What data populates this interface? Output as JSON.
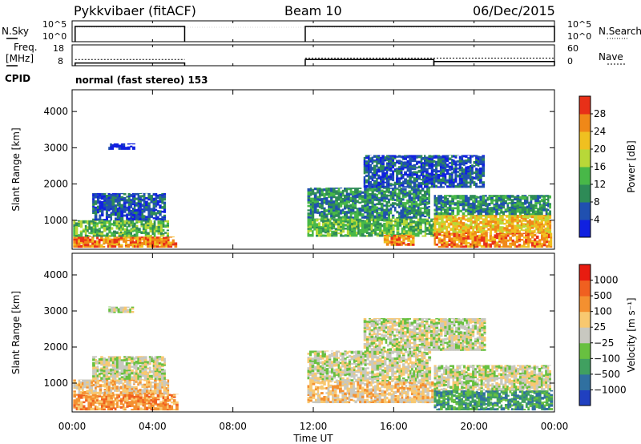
{
  "header": {
    "title": "Pykkvibaer (fitACF)",
    "beam": "Beam 10",
    "date": "06/Dec/2015"
  },
  "strip_labels": {
    "nsky": "N.Sky",
    "nsearch": "N.Search",
    "freq_line1": "Freq.",
    "freq_line2": "[MHz]",
    "nave": "Nave",
    "cpid": "CPID",
    "cpid_value": "normal (fast stereo) 153",
    "nsky_ticks": [
      "10^5",
      "10^0"
    ],
    "nsearch_ticks": [
      "10^5",
      "10^0"
    ],
    "freq_ticks": [
      "18",
      "8"
    ],
    "nave_ticks": [
      "60",
      "0"
    ]
  },
  "chart_data": {
    "type": "heatmap",
    "x_axis": {
      "label": "Time UT",
      "ticks": [
        "00:00",
        "04:00",
        "08:00",
        "12:00",
        "16:00",
        "20:00",
        "00:00"
      ],
      "range_hours": [
        0,
        24
      ]
    },
    "data_gap_hours": [
      5.6,
      11.6
    ],
    "nsky_on_segments_hours": [
      [
        0.15,
        5.6
      ],
      [
        11.6,
        24
      ]
    ],
    "freq_mhz_segments": [
      {
        "from": 0.15,
        "to": 5.6,
        "value": 9.3
      },
      {
        "from": 11.6,
        "to": 18.0,
        "value": 11.0
      },
      {
        "from": 18.0,
        "to": 24.0,
        "value": 10.0
      }
    ],
    "nave_segments": [
      {
        "from": 0.15,
        "to": 5.6,
        "value": 18
      },
      {
        "from": 11.6,
        "to": 24.0,
        "value": 22
      }
    ],
    "panels": [
      {
        "name": "power",
        "ylabel": "Slant Range [km]",
        "yticks": [
          "1000",
          "2000",
          "3000",
          "4000"
        ],
        "ylim_km": [
          200,
          4600
        ],
        "colorbar_label": "Power [dB]",
        "colorbar_ticks": [
          "4",
          "8",
          "12",
          "16",
          "20",
          "24",
          "28"
        ],
        "colorbar_colors": [
          "#1020e0",
          "#2050b0",
          "#2e8b57",
          "#48b848",
          "#b8d838",
          "#f0c020",
          "#f08818",
          "#e83018"
        ],
        "echo_regions": [
          {
            "t0": 0.05,
            "t1": 5.2,
            "r0": 250,
            "r1": 550,
            "level": 6
          },
          {
            "t0": 0.05,
            "t1": 4.8,
            "r0": 550,
            "r1": 1000,
            "level": 3
          },
          {
            "t0": 1.0,
            "t1": 4.6,
            "r0": 1000,
            "r1": 1750,
            "level": 1
          },
          {
            "t0": 1.8,
            "t1": 3.0,
            "r0": 2950,
            "r1": 3120,
            "level": 0
          },
          {
            "t0": 11.7,
            "t1": 17.8,
            "r0": 1050,
            "r1": 1900,
            "level": 2
          },
          {
            "t0": 11.7,
            "t1": 18.0,
            "r0": 550,
            "r1": 1050,
            "level": 3
          },
          {
            "t0": 15.5,
            "t1": 17.0,
            "r0": 300,
            "r1": 600,
            "level": 6
          },
          {
            "t0": 18.0,
            "t1": 23.8,
            "r0": 650,
            "r1": 1150,
            "level": 5
          },
          {
            "t0": 18.0,
            "t1": 23.8,
            "r0": 250,
            "r1": 650,
            "level": 6
          },
          {
            "t0": 18.0,
            "t1": 23.8,
            "r0": 1150,
            "r1": 1700,
            "level": 2
          },
          {
            "t0": 14.5,
            "t1": 20.5,
            "r0": 1900,
            "r1": 2800,
            "level": 1
          }
        ]
      },
      {
        "name": "velocity",
        "ylabel": "Slant Range [km]",
        "yticks": [
          "1000",
          "2000",
          "3000",
          "4000"
        ],
        "ylim_km": [
          200,
          4600
        ],
        "colorbar_label": "Velocity [m s⁻¹]",
        "colorbar_ticks": [
          "1000",
          "500",
          "100",
          "25",
          "−25",
          "−100",
          "−500",
          "−1000"
        ],
        "colorbar_colors": [
          "#2040c0",
          "#3070a0",
          "#40a060",
          "#68c040",
          "#c8c8c0",
          "#f8c870",
          "#f49030",
          "#f06020",
          "#e81c10"
        ],
        "echo_regions": [
          {
            "t0": 0.05,
            "t1": 5.2,
            "r0": 250,
            "r1": 700,
            "level": 6
          },
          {
            "t0": 0.05,
            "t1": 4.8,
            "r0": 700,
            "r1": 1100,
            "level": 5
          },
          {
            "t0": 1.0,
            "t1": 4.6,
            "r0": 1100,
            "r1": 1750,
            "level": 4
          },
          {
            "t0": 1.8,
            "t1": 3.0,
            "r0": 2950,
            "r1": 3120,
            "level": 4
          },
          {
            "t0": 11.7,
            "t1": 17.8,
            "r0": 1050,
            "r1": 1900,
            "level": 4
          },
          {
            "t0": 11.7,
            "t1": 18.0,
            "r0": 450,
            "r1": 1050,
            "level": 5
          },
          {
            "t0": 18.0,
            "t1": 23.8,
            "r0": 250,
            "r1": 800,
            "level": 2
          },
          {
            "t0": 18.0,
            "t1": 23.8,
            "r0": 800,
            "r1": 1500,
            "level": 4
          },
          {
            "t0": 14.5,
            "t1": 20.5,
            "r0": 1900,
            "r1": 2800,
            "level": 4
          }
        ]
      }
    ]
  }
}
